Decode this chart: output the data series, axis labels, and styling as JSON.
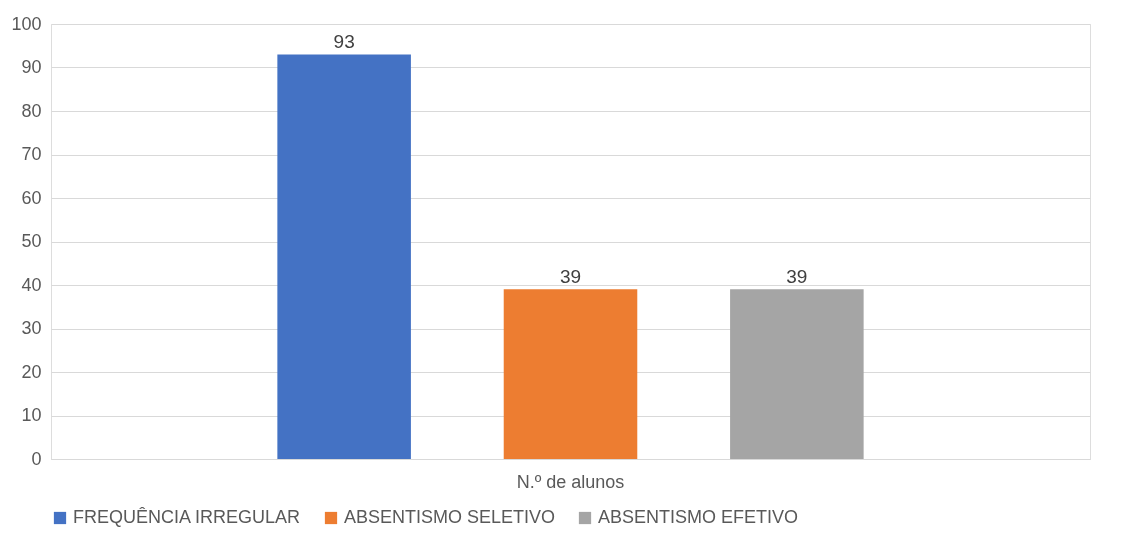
{
  "chart_data": {
    "type": "bar",
    "categories": [
      "N.º de alunos"
    ],
    "series": [
      {
        "name": "FREQUÊNCIA IRREGULAR",
        "color": "#4472c4",
        "values": [
          93
        ]
      },
      {
        "name": "ABSENTISMO SELETIVO",
        "color": "#ed7d31",
        "values": [
          39
        ]
      },
      {
        "name": "ABSENTISMO EFETIVO",
        "color": "#a5a5a5",
        "values": [
          39
        ]
      }
    ],
    "ylim": [
      0,
      100
    ],
    "yticks": [
      0,
      10,
      20,
      30,
      40,
      50,
      60,
      70,
      80,
      90,
      100
    ],
    "grid": "y",
    "legend": "bottom",
    "data_labels": true
  }
}
